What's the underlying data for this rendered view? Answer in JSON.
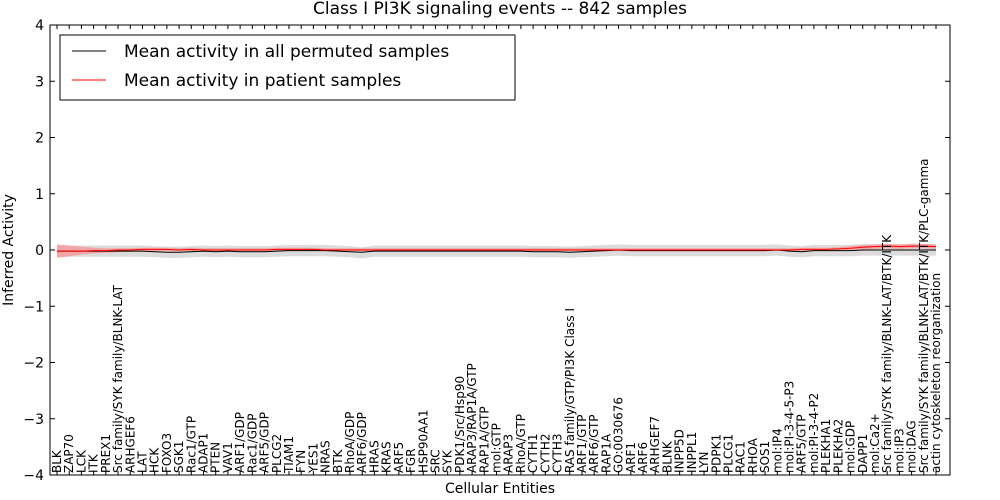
{
  "chart_data": {
    "type": "line",
    "title": "Class I PI3K signaling events -- 842 samples",
    "xlabel": "Cellular Entities",
    "ylabel": "Inferred Activity",
    "ylim": [
      -4,
      4
    ],
    "yticks": [
      -4,
      -3,
      -2,
      -1,
      0,
      1,
      2,
      3,
      4
    ],
    "legend_position": "top-left",
    "categories": [
      "BLK",
      "ZAP70",
      "LCK",
      "ITK",
      "PREX1",
      "Src family/SYK family/BLNK-LAT",
      "ARHGEF6",
      "LAT",
      "HCK",
      "FOXO3",
      "SGK1",
      "Rac1/GTP",
      "ADAP1",
      "PTEN",
      "VAV1",
      "ARF1/GDP",
      "Rac1/GDP",
      "ARF5/GDP",
      "PLCG2",
      "TIAM1",
      "FYN",
      "YES1",
      "NRAS",
      "BTK",
      "RhoA/GDP",
      "ARF6/GDP",
      "HRAS",
      "KRAS",
      "ARF5",
      "FGR",
      "HSP90AA1",
      "SRC",
      "SYK",
      "PDK1/Src/Hsp90",
      "ARAP3/RAP1A/GTP",
      "RAP1A/GTP",
      "mol:GTP",
      "ARAP3",
      "RhoA/GTP",
      "CYTH1",
      "CYTH2",
      "CYTH3",
      "RAS family/GTP/PI3K Class I",
      "ARF1/GTP",
      "ARF6/GTP",
      "RAP1A",
      "GO:0030676",
      "ARF1",
      "ARF6",
      "ARHGEF7",
      "BLNK",
      "INPP5D",
      "INPPL1",
      "LYN",
      "PDPK1",
      "PLCG1",
      "RAC1",
      "RHOA",
      "SOS1",
      "mol:IP4",
      "mol:PI-3-4-5-P3",
      "ARF5/GTP",
      "mol:PI-3-4-P2",
      "PLEKHA1",
      "PLEKHA2",
      "mol:GDP",
      "DAPP1",
      "mol:Ca2+",
      "Src family/SYK family/BLNK-LAT/BTK/ITK",
      "mol:IP3",
      "mol:DAG",
      "Src family/SYK family/BLNK-LAT/BTK/ITK/PLC-gamma",
      "actin cytoskeleton reorganization"
    ],
    "series": [
      {
        "name": "Mean activity in all permuted samples",
        "color": "#000000",
        "values": [
          -0.02,
          -0.02,
          -0.02,
          -0.02,
          -0.02,
          -0.02,
          -0.02,
          -0.02,
          -0.03,
          -0.04,
          -0.04,
          -0.03,
          -0.02,
          -0.03,
          -0.02,
          -0.03,
          -0.03,
          -0.03,
          -0.02,
          -0.01,
          -0.01,
          -0.01,
          -0.01,
          -0.02,
          -0.03,
          -0.04,
          -0.02,
          -0.02,
          -0.02,
          -0.02,
          -0.02,
          -0.02,
          -0.02,
          -0.02,
          -0.02,
          -0.02,
          -0.02,
          -0.02,
          -0.02,
          -0.03,
          -0.03,
          -0.03,
          -0.04,
          -0.03,
          -0.02,
          -0.01,
          0.0,
          -0.01,
          -0.01,
          -0.01,
          -0.01,
          -0.01,
          -0.01,
          -0.01,
          -0.01,
          -0.01,
          -0.01,
          -0.01,
          -0.01,
          0.0,
          -0.02,
          -0.03,
          -0.01,
          -0.01,
          -0.01,
          -0.01,
          0.0,
          0.0,
          0.0,
          0.0,
          0.0,
          0.0,
          0.0
        ]
      },
      {
        "name": "Mean activity in patient samples",
        "color": "#ff0000",
        "values": [
          -0.02,
          -0.02,
          -0.02,
          -0.01,
          -0.01,
          0.0,
          0.0,
          0.01,
          0.01,
          0.01,
          0.0,
          0.01,
          0.0,
          0.0,
          0.0,
          0.0,
          0.0,
          0.0,
          0.01,
          0.01,
          0.01,
          0.01,
          0.0,
          0.0,
          0.0,
          0.0,
          0.0,
          0.0,
          0.0,
          0.0,
          0.0,
          0.0,
          0.0,
          0.0,
          0.0,
          0.0,
          0.0,
          0.0,
          0.0,
          0.0,
          0.0,
          0.0,
          0.0,
          0.0,
          0.0,
          0.0,
          0.0,
          0.0,
          0.0,
          0.0,
          0.0,
          0.0,
          0.0,
          0.0,
          0.0,
          0.0,
          0.0,
          0.0,
          0.0,
          0.0,
          0.0,
          0.01,
          0.01,
          0.01,
          0.02,
          0.03,
          0.05,
          0.06,
          0.07,
          0.06,
          0.07,
          0.07,
          0.06
        ]
      }
    ],
    "bands": [
      {
        "series": "Mean activity in all permuted samples",
        "color": "#c0c0c0",
        "lower": [
          -0.12,
          -0.12,
          -0.12,
          -0.12,
          -0.12,
          -0.12,
          -0.12,
          -0.12,
          -0.13,
          -0.14,
          -0.14,
          -0.13,
          -0.12,
          -0.13,
          -0.12,
          -0.13,
          -0.13,
          -0.13,
          -0.12,
          -0.11,
          -0.11,
          -0.11,
          -0.11,
          -0.12,
          -0.13,
          -0.15,
          -0.12,
          -0.12,
          -0.12,
          -0.12,
          -0.12,
          -0.12,
          -0.12,
          -0.12,
          -0.12,
          -0.12,
          -0.12,
          -0.12,
          -0.12,
          -0.13,
          -0.13,
          -0.13,
          -0.14,
          -0.13,
          -0.12,
          -0.11,
          -0.1,
          -0.11,
          -0.11,
          -0.11,
          -0.11,
          -0.11,
          -0.11,
          -0.11,
          -0.11,
          -0.11,
          -0.11,
          -0.11,
          -0.11,
          -0.1,
          -0.12,
          -0.13,
          -0.11,
          -0.11,
          -0.11,
          -0.11,
          -0.1,
          -0.1,
          -0.1,
          -0.1,
          -0.1,
          -0.1,
          -0.1
        ],
        "upper": [
          0.08,
          0.08,
          0.08,
          0.08,
          0.08,
          0.08,
          0.08,
          0.08,
          0.07,
          0.06,
          0.06,
          0.07,
          0.08,
          0.07,
          0.08,
          0.07,
          0.07,
          0.07,
          0.08,
          0.09,
          0.09,
          0.09,
          0.09,
          0.08,
          0.07,
          0.05,
          0.08,
          0.08,
          0.08,
          0.08,
          0.08,
          0.08,
          0.08,
          0.08,
          0.08,
          0.08,
          0.08,
          0.08,
          0.08,
          0.07,
          0.07,
          0.07,
          0.06,
          0.07,
          0.08,
          0.09,
          0.1,
          0.09,
          0.09,
          0.09,
          0.09,
          0.09,
          0.09,
          0.09,
          0.09,
          0.09,
          0.09,
          0.09,
          0.09,
          0.1,
          0.08,
          0.07,
          0.09,
          0.09,
          0.09,
          0.09,
          0.1,
          0.1,
          0.1,
          0.1,
          0.1,
          0.1,
          0.1
        ]
      },
      {
        "series": "Mean activity in patient samples",
        "color": "#ff8080",
        "lower": [
          -0.14,
          -0.11,
          -0.08,
          -0.06,
          -0.05,
          -0.04,
          -0.03,
          -0.02,
          -0.02,
          -0.02,
          -0.02,
          -0.02,
          -0.02,
          -0.02,
          -0.02,
          -0.02,
          -0.02,
          -0.02,
          -0.02,
          -0.02,
          -0.02,
          -0.02,
          -0.02,
          -0.02,
          -0.02,
          -0.02,
          -0.02,
          -0.02,
          -0.02,
          -0.02,
          -0.02,
          -0.02,
          -0.02,
          -0.02,
          -0.02,
          -0.02,
          -0.02,
          -0.02,
          -0.02,
          -0.02,
          -0.02,
          -0.02,
          -0.02,
          -0.02,
          -0.02,
          -0.02,
          -0.02,
          -0.02,
          -0.02,
          -0.02,
          -0.02,
          -0.02,
          -0.02,
          -0.02,
          -0.02,
          -0.02,
          -0.02,
          -0.02,
          -0.02,
          -0.02,
          -0.02,
          -0.02,
          -0.01,
          -0.01,
          0.0,
          0.0,
          0.01,
          0.02,
          0.03,
          0.02,
          0.03,
          0.03,
          0.02
        ],
        "upper": [
          0.1,
          0.08,
          0.06,
          0.04,
          0.03,
          0.03,
          0.03,
          0.04,
          0.04,
          0.04,
          0.03,
          0.04,
          0.03,
          0.03,
          0.03,
          0.03,
          0.03,
          0.03,
          0.04,
          0.04,
          0.04,
          0.04,
          0.03,
          0.03,
          0.03,
          0.03,
          0.03,
          0.03,
          0.03,
          0.03,
          0.03,
          0.03,
          0.03,
          0.03,
          0.03,
          0.03,
          0.03,
          0.03,
          0.03,
          0.03,
          0.03,
          0.03,
          0.03,
          0.03,
          0.03,
          0.03,
          0.03,
          0.03,
          0.03,
          0.03,
          0.03,
          0.03,
          0.03,
          0.03,
          0.03,
          0.03,
          0.03,
          0.03,
          0.03,
          0.03,
          0.03,
          0.04,
          0.04,
          0.04,
          0.05,
          0.07,
          0.09,
          0.1,
          0.11,
          0.1,
          0.11,
          0.11,
          0.1
        ]
      }
    ]
  }
}
